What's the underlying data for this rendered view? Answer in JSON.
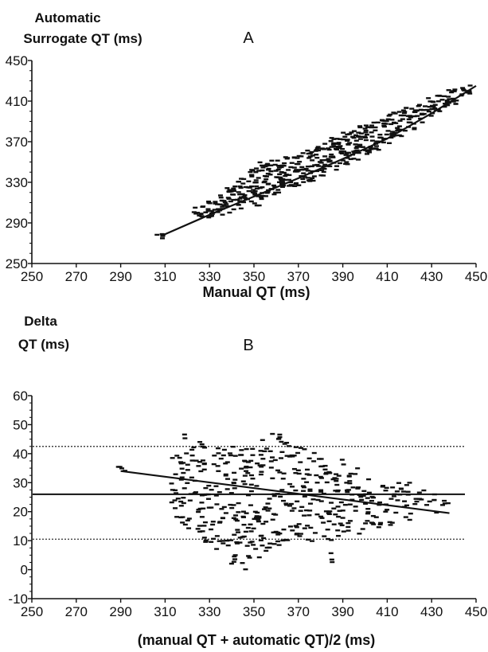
{
  "chart_data": [
    {
      "type": "scatter",
      "panel_label": "A",
      "ylabel_lines": [
        "Automatic",
        "Surrogate QT (ms)"
      ],
      "xlabel": "Manual QT (ms)",
      "xlim": [
        250,
        450
      ],
      "ylim": [
        250,
        450
      ],
      "xticks": [
        250,
        270,
        290,
        310,
        330,
        350,
        370,
        390,
        410,
        430,
        450
      ],
      "yticks": [
        250,
        290,
        330,
        370,
        410,
        450
      ],
      "regression_line": [
        [
          308,
          277
        ],
        [
          330,
          298
        ],
        [
          350,
          316
        ],
        [
          370,
          334
        ],
        [
          390,
          353
        ],
        [
          410,
          373
        ],
        [
          430,
          398
        ],
        [
          450,
          425
        ]
      ],
      "point_bands": [
        [
          308,
          273,
          279
        ],
        [
          325,
          294,
          308
        ],
        [
          330,
          295,
          312
        ],
        [
          335,
          298,
          318
        ],
        [
          340,
          300,
          326
        ],
        [
          345,
          304,
          334
        ],
        [
          350,
          306,
          344
        ],
        [
          355,
          312,
          350
        ],
        [
          360,
          318,
          352
        ],
        [
          365,
          324,
          356
        ],
        [
          370,
          326,
          360
        ],
        [
          375,
          331,
          362
        ],
        [
          380,
          336,
          368
        ],
        [
          385,
          342,
          374
        ],
        [
          390,
          346,
          380
        ],
        [
          395,
          352,
          384
        ],
        [
          400,
          356,
          388
        ],
        [
          405,
          362,
          392
        ],
        [
          410,
          368,
          398
        ],
        [
          415,
          374,
          402
        ],
        [
          420,
          380,
          404
        ],
        [
          425,
          388,
          408
        ],
        [
          430,
          394,
          414
        ],
        [
          435,
          400,
          418
        ],
        [
          440,
          406,
          422
        ],
        [
          445,
          414,
          426
        ]
      ]
    },
    {
      "type": "scatter",
      "panel_label": "B",
      "ylabel_lines": [
        "Delta",
        "QT (ms)"
      ],
      "xlabel": "(manual QT + automatic QT)/2 (ms)",
      "xlim": [
        250,
        450
      ],
      "ylim": [
        -10,
        60
      ],
      "xticks": [
        250,
        270,
        290,
        310,
        330,
        350,
        370,
        390,
        410,
        430,
        450
      ],
      "yticks": [
        -10,
        0,
        10,
        20,
        30,
        40,
        50,
        60
      ],
      "mean_line": 26,
      "upper_limit": 42.5,
      "lower_limit": 10.5,
      "regression_line": [
        [
          290,
          34
        ],
        [
          438,
          19.5
        ]
      ],
      "point_bands": [
        [
          290,
          34,
          36
        ],
        [
          315,
          16,
          42
        ],
        [
          320,
          14,
          48
        ],
        [
          325,
          13,
          45
        ],
        [
          330,
          9,
          44
        ],
        [
          335,
          6,
          42
        ],
        [
          340,
          2,
          44
        ],
        [
          345,
          -1,
          46
        ],
        [
          350,
          4,
          45
        ],
        [
          355,
          6,
          46
        ],
        [
          360,
          8,
          47
        ],
        [
          365,
          10,
          45
        ],
        [
          370,
          11,
          44
        ],
        [
          375,
          9,
          42
        ],
        [
          380,
          10,
          40
        ],
        [
          385,
          2,
          38
        ],
        [
          390,
          8,
          38
        ],
        [
          395,
          10,
          36
        ],
        [
          400,
          12,
          34
        ],
        [
          405,
          14,
          32
        ],
        [
          410,
          15,
          31
        ],
        [
          415,
          16,
          30
        ],
        [
          420,
          17,
          30
        ],
        [
          425,
          18,
          28
        ],
        [
          430,
          18,
          26
        ],
        [
          435,
          19,
          24
        ]
      ]
    }
  ]
}
